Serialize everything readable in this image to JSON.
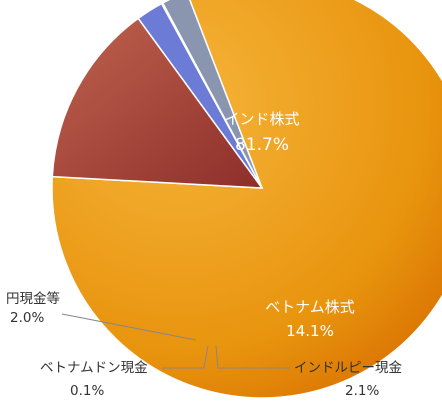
{
  "chart_data": {
    "type": "pie",
    "slices": [
      {
        "name": "インド株式",
        "value": 81.7,
        "label": "81.7%",
        "color": "#E8940E"
      },
      {
        "name": "ベトナム株式",
        "value": 14.1,
        "label": "14.1%",
        "color": "#A8433A"
      },
      {
        "name": "インドルピー現金",
        "value": 2.1,
        "label": "2.1%",
        "color": "#6B7BD6"
      },
      {
        "name": "ベトナムドン現金",
        "value": 0.1,
        "label": "0.1%",
        "color": "#5566BB"
      },
      {
        "name": "円現金等",
        "value": 2.0,
        "label": "2.0%",
        "color": "#8A96B0"
      }
    ],
    "legend": "none",
    "title": ""
  }
}
